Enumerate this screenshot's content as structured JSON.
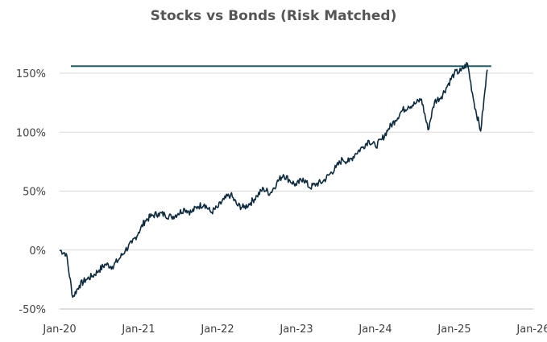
{
  "chart_data": {
    "type": "line",
    "title": "Stocks vs Bonds (Risk Matched)",
    "xlabel": "",
    "ylabel": "",
    "x_ticks": [
      "Jan-20",
      "Jan-21",
      "Jan-22",
      "Jan-23",
      "Jan-24",
      "Jan-25",
      "Jan-26"
    ],
    "y_ticks": [
      "-50%",
      "0%",
      "50%",
      "100%",
      "150%"
    ],
    "y_tick_values": [
      -50,
      0,
      50,
      100,
      150
    ],
    "xlim": [
      "2020-01",
      "2026-01"
    ],
    "ylim": [
      -50,
      150
    ],
    "grid": "horizontal",
    "legend": "none",
    "colors": {
      "line": "#0d2b3e",
      "reference": "#1f5f6b",
      "grid": "#d9d9d9",
      "axis": "#bfbfbf"
    },
    "reference_line": {
      "y": 156,
      "x_start": "2020-01",
      "x_end": "2025-06"
    },
    "series": [
      {
        "x": [
          "2020-01",
          "2020-02",
          "2020-03",
          "2020-04",
          "2020-05",
          "2020-06",
          "2020-07",
          "2020-08",
          "2020-09",
          "2020-10",
          "2020-11",
          "2020-12",
          "2021-01",
          "2021-02",
          "2021-03",
          "2021-04",
          "2021-05",
          "2021-06",
          "2021-07",
          "2021-08",
          "2021-09",
          "2021-10",
          "2021-11",
          "2021-12",
          "2022-01",
          "2022-02",
          "2022-03",
          "2022-04",
          "2022-05",
          "2022-06",
          "2022-07",
          "2022-08",
          "2022-09",
          "2022-10",
          "2022-11",
          "2022-12",
          "2023-01",
          "2023-02",
          "2023-03",
          "2023-04",
          "2023-05",
          "2023-06",
          "2023-07",
          "2023-08",
          "2023-09",
          "2023-10",
          "2023-11",
          "2023-12",
          "2024-01",
          "2024-02",
          "2024-03",
          "2024-04",
          "2024-05",
          "2024-06",
          "2024-07",
          "2024-08",
          "2024-09",
          "2024-10",
          "2024-11",
          "2024-12",
          "2025-01",
          "2025-02",
          "2025-03",
          "2025-04",
          "2025-05",
          "2025-06"
        ],
        "values": [
          0,
          -3,
          -40,
          -30,
          -25,
          -22,
          -17,
          -12,
          -14,
          -8,
          0,
          6,
          15,
          25,
          29,
          31,
          30,
          28,
          31,
          35,
          32,
          37,
          39,
          32,
          36,
          43,
          47,
          38,
          36,
          40,
          46,
          52,
          48,
          57,
          64,
          59,
          55,
          61,
          53,
          56,
          58,
          64,
          70,
          77,
          75,
          82,
          87,
          93,
          88,
          94,
          103,
          110,
          118,
          122,
          124,
          128,
          102,
          126,
          130,
          140,
          150,
          152,
          158,
          125,
          101,
          153
        ]
      }
    ]
  }
}
